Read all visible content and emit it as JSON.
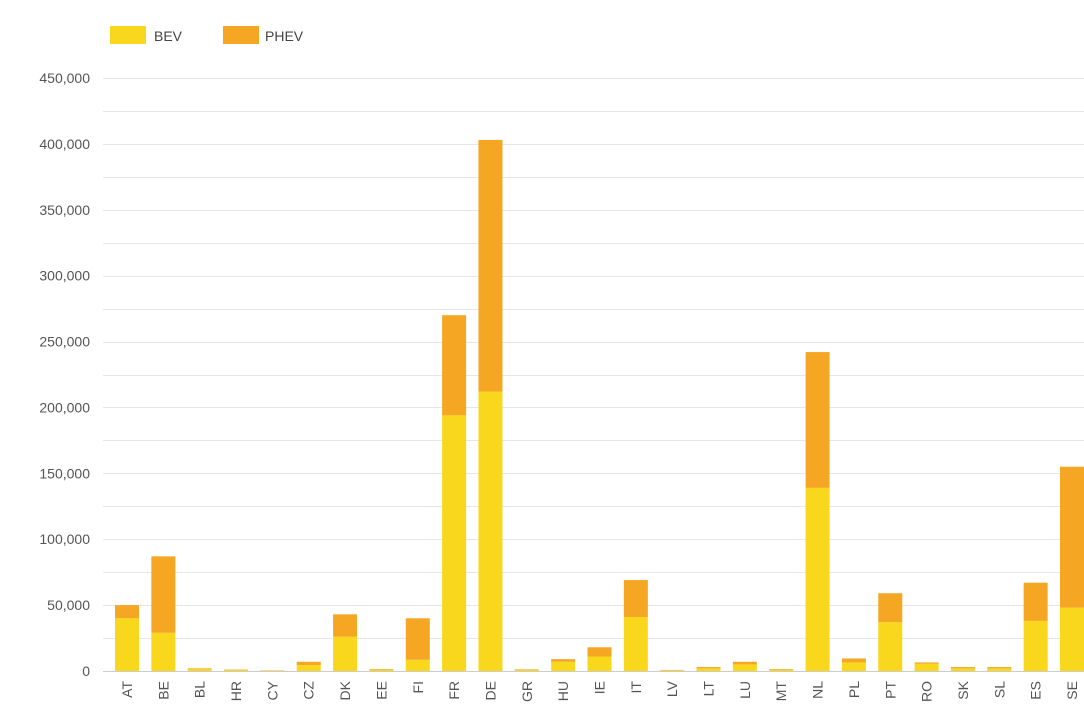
{
  "chart_data": {
    "type": "bar",
    "stacked": true,
    "title": "",
    "xlabel": "",
    "ylabel": "",
    "ylim": [
      0,
      450000
    ],
    "yticks": [
      0,
      50000,
      100000,
      150000,
      200000,
      250000,
      300000,
      350000,
      400000,
      450000
    ],
    "ytick_labels": [
      "0",
      "50,000",
      "100,000",
      "150,000",
      "200,000",
      "250,000",
      "300,000",
      "350,000",
      "400,000",
      "450,000"
    ],
    "grid": true,
    "legend_position": "top-left",
    "categories": [
      "AT",
      "BE",
      "BL",
      "HR",
      "CY",
      "CZ",
      "DK",
      "EE",
      "FI",
      "FR",
      "DE",
      "GR",
      "HU",
      "IE",
      "IT",
      "LV",
      "LT",
      "LU",
      "MT",
      "NL",
      "PL",
      "PT",
      "RO",
      "SK",
      "SL",
      "ES",
      "SE"
    ],
    "series": [
      {
        "name": "BEV",
        "color": "#f9d71c",
        "values": [
          40000,
          29000,
          1500,
          800,
          300,
          4500,
          26000,
          1000,
          8500,
          194000,
          212000,
          900,
          7000,
          11000,
          41000,
          500,
          2000,
          5000,
          1000,
          139000,
          6500,
          37000,
          5500,
          2000,
          2000,
          38000,
          48000
        ]
      },
      {
        "name": "PHEV",
        "color": "#f5a623",
        "values": [
          10000,
          58000,
          500,
          300,
          200,
          2500,
          17000,
          500,
          31500,
          76000,
          191000,
          400,
          2000,
          7000,
          28000,
          300,
          1000,
          2000,
          500,
          103000,
          3000,
          22000,
          1000,
          1000,
          1000,
          29000,
          107000
        ]
      }
    ]
  }
}
